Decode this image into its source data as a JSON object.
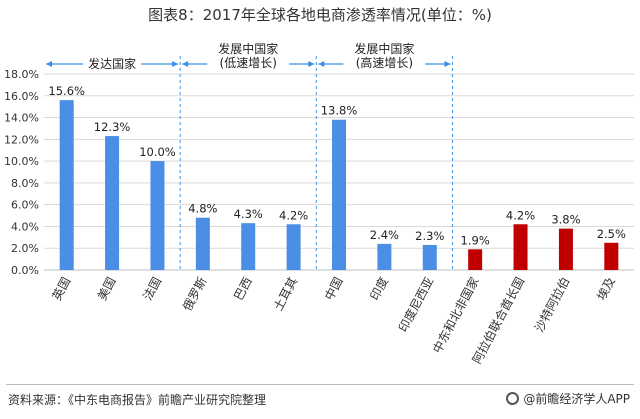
{
  "title": "图表8：2017年全球各地电商渗透率情况(单位：%)",
  "footer": {
    "source": "资料来源：《中东电商报告》前瞻产业研究院整理",
    "brand": "@前瞻经济学人APP"
  },
  "chart_data": {
    "type": "bar",
    "title": "图表8：2017年全球各地电商渗透率情况(单位：%)",
    "xlabel": "",
    "ylabel": "",
    "ylim": [
      0,
      18
    ],
    "yticks": [
      "0.0%",
      "2.0%",
      "4.0%",
      "6.0%",
      "8.0%",
      "10.0%",
      "12.0%",
      "14.0%",
      "16.0%",
      "18.0%"
    ],
    "categories": [
      "英国",
      "美国",
      "法国",
      "俄罗斯",
      "巴西",
      "土耳其",
      "中国",
      "印度",
      "印度尼西亚",
      "中东和北非国家",
      "阿拉伯联合酋长国",
      "沙特阿拉伯",
      "埃及"
    ],
    "values": [
      15.6,
      12.3,
      10.0,
      4.8,
      4.3,
      4.2,
      13.8,
      2.4,
      2.3,
      1.9,
      4.2,
      3.8,
      2.5
    ],
    "value_labels": [
      "15.6%",
      "12.3%",
      "10.0%",
      "4.8%",
      "4.3%",
      "4.2%",
      "13.8%",
      "2.4%",
      "2.3%",
      "1.9%",
      "4.2%",
      "3.8%",
      "2.5%"
    ],
    "bar_colors": [
      "#4a8ee6",
      "#4a8ee6",
      "#4a8ee6",
      "#4a8ee6",
      "#4a8ee6",
      "#4a8ee6",
      "#4a8ee6",
      "#4a8ee6",
      "#4a8ee6",
      "#c00000",
      "#c00000",
      "#c00000",
      "#c00000"
    ],
    "groups": [
      {
        "label_lines": [
          "发达国家"
        ],
        "start": 0,
        "end": 2
      },
      {
        "label_lines": [
          "发展中国家",
          "(低速增长)"
        ],
        "start": 3,
        "end": 5
      },
      {
        "label_lines": [
          "发展中国家",
          "(高速增长)"
        ],
        "start": 6,
        "end": 8
      }
    ],
    "grid": true,
    "accent_color": "#3b8ee8"
  }
}
